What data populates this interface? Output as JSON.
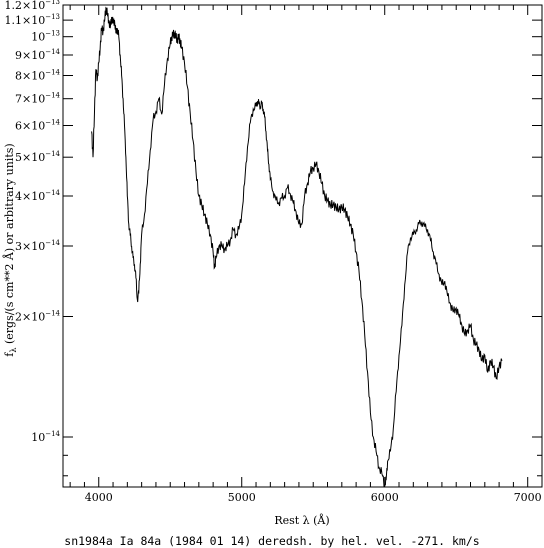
{
  "chart_data": {
    "type": "line",
    "title": "sn1984a Ia 84a (1984 01 14) deredsh. by hel. vel.  -271. km/s",
    "xlabel": "Rest λ (Å)",
    "ylabel": "fλ (ergs/(s cm**2 Å) or arbitrary units)",
    "ylabel_main": "f",
    "ylabel_sub": "λ",
    "ylabel_rest": " (ergs/(s cm**2 Å) or arbitrary units)",
    "xlim": [
      3750,
      7100
    ],
    "ylim": [
      7.5e-15,
      1.2e-13
    ],
    "yscale": "log",
    "grid": false,
    "x_ticks": [
      {
        "value": 4000,
        "label": "4000"
      },
      {
        "value": 5000,
        "label": "5000"
      },
      {
        "value": 6000,
        "label": "6000"
      },
      {
        "value": 7000,
        "label": "7000"
      }
    ],
    "y_ticks": [
      {
        "value": 1.2e-13,
        "mant": "1.2×10",
        "exp": "−13"
      },
      {
        "value": 1.1e-13,
        "mant": "1.1×10",
        "exp": "−13"
      },
      {
        "value": 1e-13,
        "mant": "10",
        "exp": "−13"
      },
      {
        "value": 9e-14,
        "mant": "9×10",
        "exp": "−14"
      },
      {
        "value": 8e-14,
        "mant": "8×10",
        "exp": "−14"
      },
      {
        "value": 7e-14,
        "mant": "7×10",
        "exp": "−14"
      },
      {
        "value": 6e-14,
        "mant": "6×10",
        "exp": "−14"
      },
      {
        "value": 5e-14,
        "mant": "5×10",
        "exp": "−14"
      },
      {
        "value": 4e-14,
        "mant": "4×10",
        "exp": "−14"
      },
      {
        "value": 3e-14,
        "mant": "3×10",
        "exp": "−14"
      },
      {
        "value": 2e-14,
        "mant": "2×10",
        "exp": "−14"
      },
      {
        "value": 1e-14,
        "mant": "10",
        "exp": "−14"
      }
    ],
    "x": [
      3950,
      3960,
      3970,
      3980,
      3990,
      4000,
      4010,
      4020,
      4030,
      4040,
      4050,
      4060,
      4070,
      4080,
      4090,
      4100,
      4110,
      4120,
      4130,
      4140,
      4150,
      4160,
      4170,
      4180,
      4190,
      4200,
      4210,
      4220,
      4230,
      4240,
      4250,
      4260,
      4270,
      4280,
      4290,
      4300,
      4320,
      4340,
      4360,
      4380,
      4400,
      4420,
      4440,
      4460,
      4480,
      4500,
      4510,
      4520,
      4530,
      4540,
      4550,
      4560,
      4570,
      4580,
      4600,
      4620,
      4640,
      4660,
      4680,
      4700,
      4720,
      4740,
      4760,
      4780,
      4800,
      4810,
      4820,
      4840,
      4860,
      4880,
      4900,
      4920,
      4940,
      4960,
      4980,
      5000,
      5020,
      5040,
      5060,
      5080,
      5100,
      5110,
      5120,
      5130,
      5140,
      5150,
      5160,
      5170,
      5180,
      5190,
      5200,
      5220,
      5240,
      5260,
      5280,
      5300,
      5320,
      5340,
      5360,
      5380,
      5400,
      5420,
      5440,
      5460,
      5480,
      5500,
      5520,
      5540,
      5560,
      5580,
      5600,
      5620,
      5640,
      5660,
      5680,
      5700,
      5720,
      5740,
      5760,
      5780,
      5800,
      5820,
      5840,
      5860,
      5880,
      5900,
      5920,
      5940,
      5960,
      5980,
      6000,
      6010,
      6020,
      6040,
      6060,
      6080,
      6100,
      6120,
      6140,
      6160,
      6180,
      6200,
      6220,
      6240,
      6260,
      6280,
      6300,
      6320,
      6340,
      6360,
      6380,
      6400,
      6420,
      6440,
      6460,
      6480,
      6500,
      6520,
      6540,
      6560,
      6580,
      6600,
      6620,
      6640,
      6660,
      6680,
      6700,
      6720,
      6740,
      6760,
      6780,
      6800,
      6820
    ],
    "y": [
      5.8e-14,
      5e-14,
      6.5e-14,
      8.3e-14,
      7.8e-14,
      8.6e-14,
      9.4e-14,
      1.05e-13,
      1.03e-13,
      1.09e-13,
      1.18e-13,
      1.14e-13,
      1.1e-13,
      1.05e-13,
      1.12e-13,
      1.08e-13,
      1.1e-13,
      1.02e-13,
      1.05e-13,
      1e-13,
      9e-14,
      8e-14,
      7e-14,
      6e-14,
      5e-14,
      4e-14,
      3.4e-14,
      3.2e-14,
      3e-14,
      2.8e-14,
      2.7e-14,
      2.5e-14,
      2.2e-14,
      2.3e-14,
      2.7e-14,
      3.2e-14,
      3.6e-14,
      4.3e-14,
      5.2e-14,
      6.2e-14,
      6.5e-14,
      7e-14,
      6.4e-14,
      7.6e-14,
      8.8e-14,
      9.6e-14,
      1e-13,
      1.01e-13,
      1.02e-13,
      1e-13,
      9.8e-14,
      1e-13,
      9.7e-14,
      9.4e-14,
      8.6e-14,
      7.5e-14,
      6.4e-14,
      5.5e-14,
      4.6e-14,
      4e-14,
      3.8e-14,
      3.6e-14,
      3.4e-14,
      3.2e-14,
      2.9e-14,
      2.65e-14,
      2.8e-14,
      3e-14,
      3e-14,
      2.95e-14,
      3e-14,
      3.1e-14,
      3.3e-14,
      3.2e-14,
      3.3e-14,
      3.6e-14,
      4.3e-14,
      5.3e-14,
      6.1e-14,
      6.6e-14,
      6.7e-14,
      6.9e-14,
      6.8e-14,
      6.7e-14,
      6.8e-14,
      6.6e-14,
      6.3e-14,
      5.8e-14,
      5.2e-14,
      4.8e-14,
      4.4e-14,
      4.1e-14,
      3.9e-14,
      3.85e-14,
      3.95e-14,
      4e-14,
      4.2e-14,
      4.05e-14,
      3.85e-14,
      3.65e-14,
      3.4e-14,
      3.4e-14,
      4e-14,
      4.3e-14,
      4.6e-14,
      4.7e-14,
      4.8e-14,
      4.6e-14,
      4.3e-14,
      4e-14,
      3.9e-14,
      3.8e-14,
      3.8e-14,
      3.75e-14,
      3.7e-14,
      3.75e-14,
      3.7e-14,
      3.55e-14,
      3.4e-14,
      3.2e-14,
      2.9e-14,
      2.6e-14,
      2.2e-14,
      1.8e-14,
      1.45e-14,
      1.15e-14,
      1e-14,
      9.2e-15,
      8.4e-15,
      8.1e-15,
      7.6e-15,
      7.8e-15,
      8.7e-15,
      9.2e-15,
      1.05e-14,
      1.3e-14,
      1.6e-14,
      1.9e-14,
      2.4e-14,
      2.9e-14,
      3.15e-14,
      3.2e-14,
      3.3e-14,
      3.4e-14,
      3.45e-14,
      3.35e-14,
      3.3e-14,
      3.1e-14,
      2.9e-14,
      2.7e-14,
      2.55e-14,
      2.4e-14,
      2.45e-14,
      2.25e-14,
      2.15e-14,
      2.05e-14,
      2.1e-14,
      2e-14,
      1.9e-14,
      1.8e-14,
      1.85e-14,
      1.9e-14,
      1.75e-14,
      1.7e-14,
      1.65e-14,
      1.55e-14,
      1.6e-14,
      1.45e-14,
      1.55e-14,
      1.5e-14,
      1.4e-14,
      1.5e-14,
      1.55e-14
    ]
  }
}
